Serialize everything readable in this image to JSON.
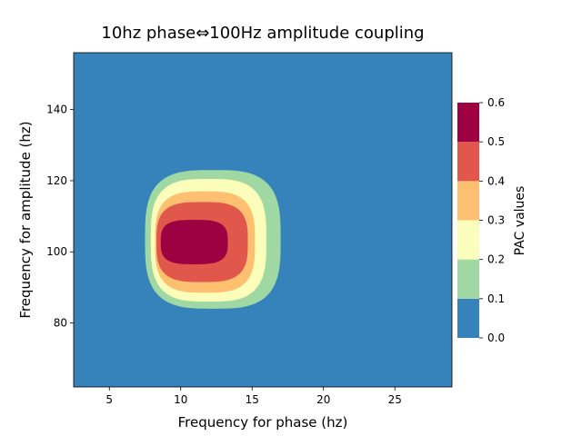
{
  "chart_data": {
    "type": "contour",
    "title": "10hz phase⇔100Hz amplitude coupling",
    "xlabel": "Frequency for phase (hz)",
    "ylabel": "Frequency for amplitude (hz)",
    "xlim": [
      2.5,
      29
    ],
    "ylim": [
      62,
      156
    ],
    "xticks": [
      "5",
      "10",
      "15",
      "20",
      "25"
    ],
    "xtick_values": [
      5,
      10,
      15,
      20,
      25
    ],
    "yticks": [
      "80",
      "100",
      "120",
      "140"
    ],
    "ytick_values": [
      80,
      100,
      120,
      140
    ],
    "levels": [
      0.0,
      0.1,
      0.2,
      0.3,
      0.4,
      0.5,
      0.6
    ],
    "level_colors": [
      "#3682ba",
      "#a0d8a4",
      "#fbfdbb",
      "#fdbf70",
      "#e2574c",
      "#9e0142"
    ],
    "peak": {
      "x": 10.5,
      "y": 103,
      "value": 0.6
    },
    "contours": [
      {
        "level": 0.1,
        "x_range": [
          7.5,
          17
        ],
        "y_range": [
          84,
          123
        ]
      },
      {
        "level": 0.2,
        "x_range": [
          7.9,
          16
        ],
        "y_range": [
          86,
          120.5
        ]
      },
      {
        "level": 0.3,
        "x_range": [
          8.2,
          15.2
        ],
        "y_range": [
          88.5,
          117
        ]
      },
      {
        "level": 0.4,
        "x_range": [
          8.3,
          14.7
        ],
        "y_range": [
          91.5,
          114
        ]
      },
      {
        "level": 0.5,
        "x_range": [
          8.6,
          13.3
        ],
        "y_range": [
          96.5,
          109
        ]
      }
    ],
    "colorbar": {
      "label": "PAC values",
      "ticks": [
        "0.0",
        "0.1",
        "0.2",
        "0.3",
        "0.4",
        "0.5",
        "0.6"
      ],
      "tick_values": [
        0.0,
        0.1,
        0.2,
        0.3,
        0.4,
        0.5,
        0.6
      ]
    }
  }
}
